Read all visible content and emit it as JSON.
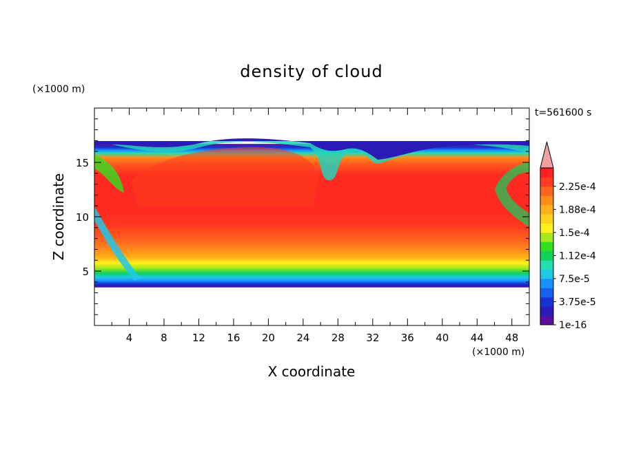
{
  "chart_data": {
    "type": "heatmap",
    "title": "density of cloud",
    "xlabel": "X coordinate",
    "ylabel": "Z coordinate",
    "x_unit": "(×1000 m)",
    "y_unit": "(×1000 m)",
    "time_label": "t=561600 s",
    "xlim": [
      0,
      50
    ],
    "ylim": [
      0,
      20
    ],
    "x_ticks": [
      4,
      8,
      12,
      16,
      20,
      24,
      28,
      32,
      36,
      40,
      44,
      48
    ],
    "y_ticks": [
      5,
      10,
      15
    ],
    "colorbar": {
      "labels": [
        "1e-16",
        "3.75e-5",
        "7.5e-5",
        "1.12e-4",
        "1.5e-4",
        "1.88e-4",
        "2.25e-4"
      ],
      "colors": [
        "#5b0fa0",
        "#2b1ab5",
        "#1535d2",
        "#1462ec",
        "#1890ff",
        "#20c8e8",
        "#24e0b0",
        "#10d25a",
        "#30e020",
        "#a6e81a",
        "#fff01a",
        "#ffd21a",
        "#ffb01a",
        "#ff8c1a",
        "#ff641e",
        "#ff3c1e",
        "#ff2020"
      ],
      "extend_max_color": "#f4a0a0"
    },
    "cloud_layer": {
      "base_z": 3.5,
      "top_z": 16.7,
      "core_density": "2.25e-4"
    }
  }
}
